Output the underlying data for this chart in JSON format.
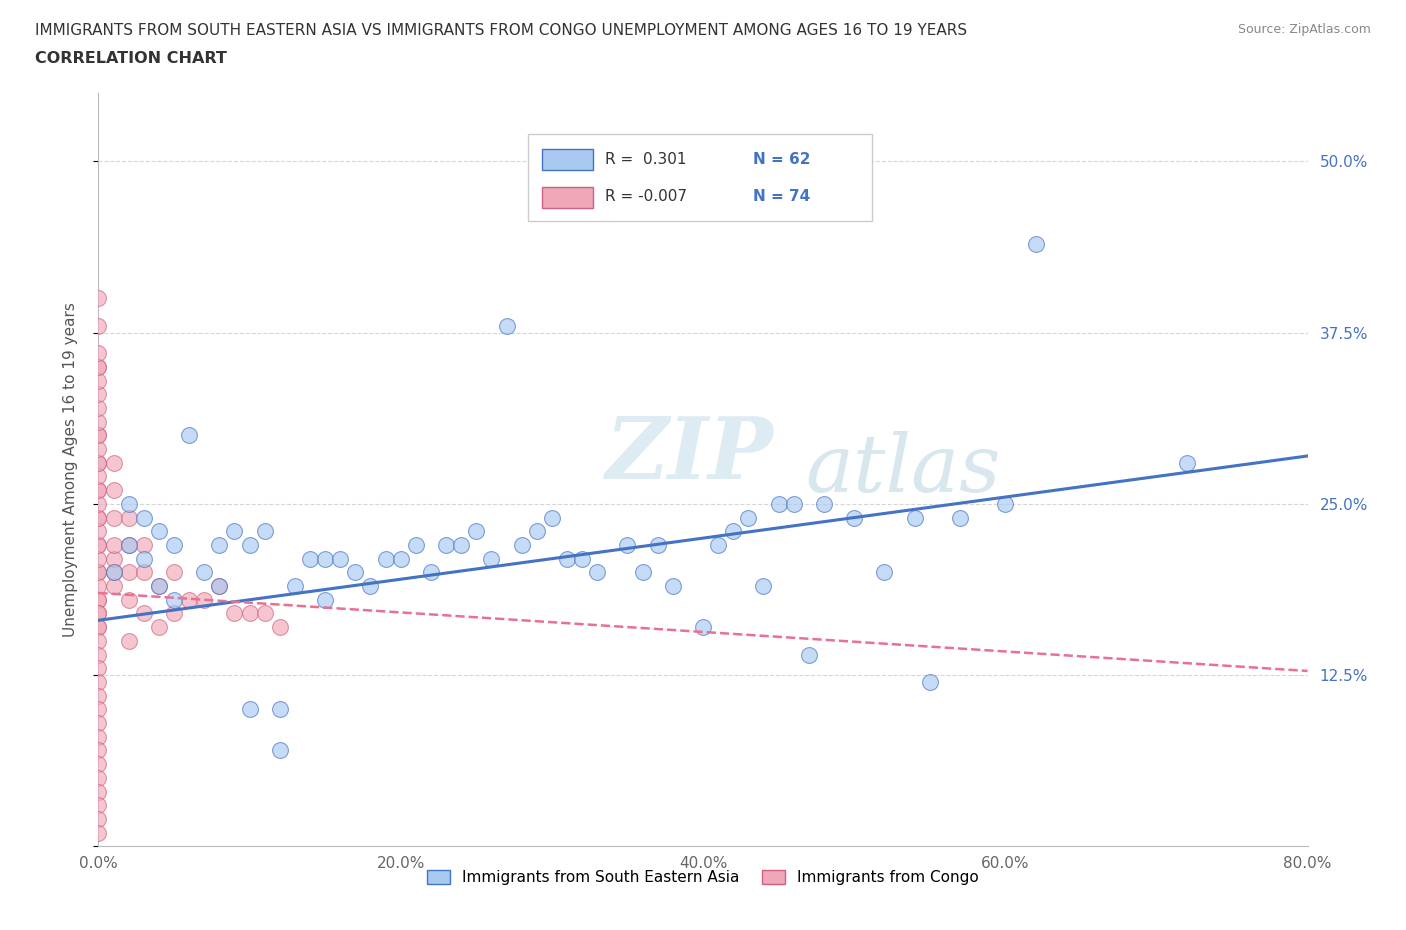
{
  "title_line1": "IMMIGRANTS FROM SOUTH EASTERN ASIA VS IMMIGRANTS FROM CONGO UNEMPLOYMENT AMONG AGES 16 TO 19 YEARS",
  "title_line2": "CORRELATION CHART",
  "source": "Source: ZipAtlas.com",
  "ylabel": "Unemployment Among Ages 16 to 19 years",
  "legend_label1": "Immigrants from South Eastern Asia",
  "legend_label2": "Immigrants from Congo",
  "R1": 0.301,
  "N1": 62,
  "R2": -0.007,
  "N2": 74,
  "color1": "#a8c8f0",
  "color2": "#f0a8b8",
  "line_color1": "#4472c4",
  "line_color2": "#e87090",
  "watermark_zip": "ZIP",
  "watermark_atlas": "atlas",
  "xlim": [
    0.0,
    0.8
  ],
  "ylim": [
    0.0,
    0.55
  ],
  "xticks": [
    0.0,
    0.2,
    0.4,
    0.6,
    0.8
  ],
  "xticklabels": [
    "0.0%",
    "20.0%",
    "40.0%",
    "60.0%",
    "80.0%"
  ],
  "yticks": [
    0.125,
    0.25,
    0.375,
    0.5
  ],
  "yticklabels": [
    "12.5%",
    "25.0%",
    "37.5%",
    "50.0%"
  ],
  "sea_line_x0": 0.0,
  "sea_line_y0": 0.165,
  "sea_line_x1": 0.8,
  "sea_line_y1": 0.285,
  "congo_line_x0": 0.0,
  "congo_line_y0": 0.185,
  "congo_line_x1": 0.8,
  "congo_line_y1": 0.128,
  "sea_x": [
    0.01,
    0.02,
    0.02,
    0.03,
    0.03,
    0.04,
    0.04,
    0.05,
    0.05,
    0.06,
    0.07,
    0.08,
    0.08,
    0.09,
    0.1,
    0.1,
    0.11,
    0.12,
    0.12,
    0.13,
    0.14,
    0.15,
    0.15,
    0.16,
    0.17,
    0.18,
    0.19,
    0.2,
    0.21,
    0.22,
    0.23,
    0.24,
    0.25,
    0.26,
    0.27,
    0.28,
    0.29,
    0.3,
    0.31,
    0.32,
    0.33,
    0.35,
    0.36,
    0.37,
    0.38,
    0.4,
    0.41,
    0.42,
    0.43,
    0.44,
    0.45,
    0.46,
    0.47,
    0.48,
    0.5,
    0.52,
    0.54,
    0.55,
    0.57,
    0.6,
    0.62,
    0.72
  ],
  "sea_y": [
    0.2,
    0.22,
    0.25,
    0.21,
    0.24,
    0.19,
    0.23,
    0.18,
    0.22,
    0.3,
    0.2,
    0.19,
    0.22,
    0.23,
    0.1,
    0.22,
    0.23,
    0.07,
    0.1,
    0.19,
    0.21,
    0.18,
    0.21,
    0.21,
    0.2,
    0.19,
    0.21,
    0.21,
    0.22,
    0.2,
    0.22,
    0.22,
    0.23,
    0.21,
    0.38,
    0.22,
    0.23,
    0.24,
    0.21,
    0.21,
    0.2,
    0.22,
    0.2,
    0.22,
    0.19,
    0.16,
    0.22,
    0.23,
    0.24,
    0.19,
    0.25,
    0.25,
    0.14,
    0.25,
    0.24,
    0.2,
    0.24,
    0.12,
    0.24,
    0.25,
    0.44,
    0.28
  ],
  "congo_x": [
    0.0,
    0.0,
    0.0,
    0.0,
    0.0,
    0.0,
    0.0,
    0.0,
    0.0,
    0.0,
    0.0,
    0.0,
    0.0,
    0.0,
    0.0,
    0.0,
    0.0,
    0.0,
    0.0,
    0.0,
    0.0,
    0.0,
    0.0,
    0.0,
    0.0,
    0.0,
    0.0,
    0.0,
    0.0,
    0.0,
    0.0,
    0.0,
    0.0,
    0.0,
    0.0,
    0.0,
    0.0,
    0.0,
    0.0,
    0.0,
    0.0,
    0.0,
    0.0,
    0.0,
    0.0,
    0.0,
    0.0,
    0.0,
    0.01,
    0.01,
    0.01,
    0.01,
    0.01,
    0.01,
    0.01,
    0.02,
    0.02,
    0.02,
    0.02,
    0.02,
    0.03,
    0.03,
    0.03,
    0.04,
    0.04,
    0.05,
    0.05,
    0.06,
    0.07,
    0.08,
    0.09,
    0.1,
    0.11,
    0.12
  ],
  "congo_y": [
    0.4,
    0.35,
    0.3,
    0.28,
    0.26,
    0.24,
    0.22,
    0.2,
    0.19,
    0.18,
    0.18,
    0.17,
    0.17,
    0.16,
    0.16,
    0.15,
    0.14,
    0.13,
    0.12,
    0.11,
    0.1,
    0.09,
    0.08,
    0.07,
    0.06,
    0.05,
    0.04,
    0.03,
    0.02,
    0.01,
    0.2,
    0.21,
    0.22,
    0.23,
    0.24,
    0.25,
    0.26,
    0.27,
    0.28,
    0.29,
    0.3,
    0.31,
    0.32,
    0.33,
    0.34,
    0.35,
    0.36,
    0.38,
    0.19,
    0.2,
    0.21,
    0.22,
    0.24,
    0.26,
    0.28,
    0.15,
    0.18,
    0.2,
    0.22,
    0.24,
    0.17,
    0.2,
    0.22,
    0.16,
    0.19,
    0.17,
    0.2,
    0.18,
    0.18,
    0.19,
    0.17,
    0.17,
    0.17,
    0.16
  ]
}
